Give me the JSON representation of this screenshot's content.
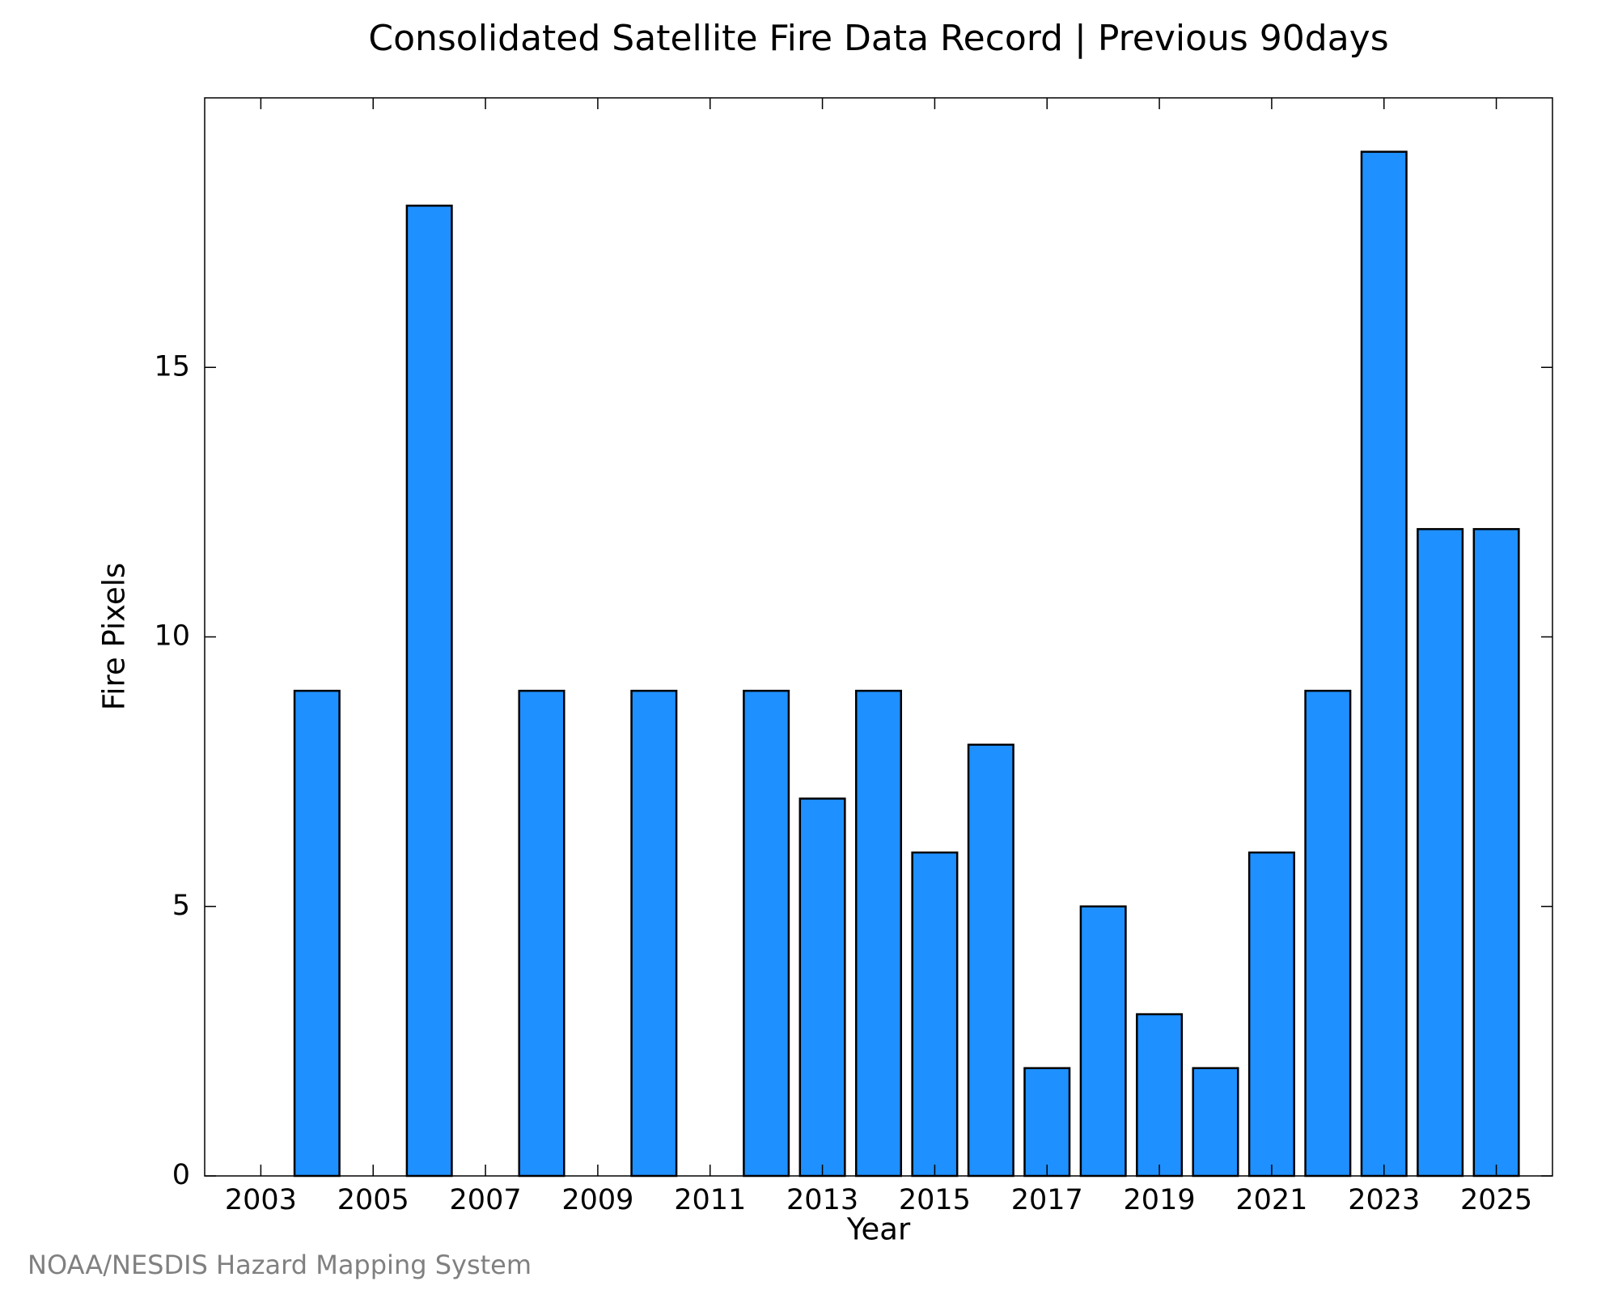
{
  "chart_data": {
    "type": "bar",
    "title": "Consolidated Satellite Fire Data Record | Previous 90days",
    "x_label": "Year",
    "y_label": "Fire Pixels",
    "source": "NOAA/NESDIS Hazard Mapping System",
    "x": [
      2003,
      2004,
      2005,
      2006,
      2007,
      2008,
      2009,
      2010,
      2011,
      2012,
      2013,
      2014,
      2015,
      2016,
      2017,
      2018,
      2019,
      2020,
      2021,
      2022,
      2023,
      2024,
      2025
    ],
    "values": [
      0,
      9,
      0,
      18,
      0,
      9,
      0,
      9,
      0,
      9,
      7,
      9,
      6,
      8,
      2,
      5,
      3,
      2,
      6,
      9,
      19,
      12,
      12
    ],
    "color": "#1e90ff",
    "xlim": [
      2002,
      2026
    ],
    "xticks": [
      2003,
      2005,
      2007,
      2009,
      2011,
      2013,
      2015,
      2017,
      2019,
      2021,
      2023,
      2025
    ],
    "ylim": [
      0,
      20
    ],
    "yticks": [
      0,
      5,
      10,
      15
    ]
  }
}
